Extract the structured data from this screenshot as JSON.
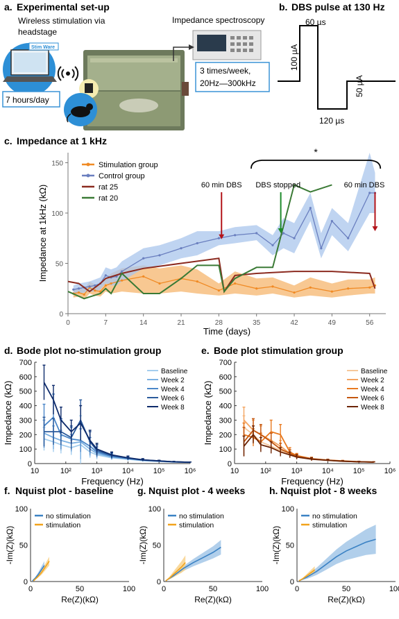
{
  "panel_a": {
    "letter": "a.",
    "title": "Experimental set-up",
    "wireless_label": "Wireless stimulation via",
    "wireless_label2": "headstage",
    "spectroscopy_label": "Impedance spectroscopy",
    "hours_box": "7 hours/day",
    "freq_box_line1": "3 times/week,",
    "freq_box_line2": "20Hz—300kHz",
    "logo_text": "Stim Ware",
    "colors": {
      "box_border": "#3a93d6",
      "laptop_screen": "#cfe3f2",
      "cage": "#8a9a72",
      "arrow": "#333333"
    }
  },
  "panel_b": {
    "letter": "b.",
    "title": "DBS pulse at 130 Hz",
    "pulse_width_top": "60 µs",
    "pulse_width_bottom": "120 µs",
    "amp_pos": "100 µA",
    "amp_neg": "50 µA",
    "chart_data": {
      "type": "line",
      "x": [
        0,
        0,
        60,
        60,
        180,
        180,
        240
      ],
      "y": [
        0,
        100,
        100,
        -50,
        -50,
        0,
        0
      ],
      "xlabel": "",
      "ylabel": ""
    }
  },
  "panel_c": {
    "letter": "c.",
    "title": "Impedance at 1 kHz",
    "annotations": {
      "dbs1": "60 min DBS",
      "stopped": "DBS stopped",
      "dbs2": "60 min DBS",
      "significance": "*"
    },
    "colors": {
      "stim": "#f08a24",
      "stim_band": "#f6b56e",
      "control": "#6a7fbf",
      "control_band": "#a9c6ec",
      "rat25": "#8b2a1f",
      "rat20": "#3a7a35",
      "arrow_red": "#b3141a",
      "arrow_green": "#1d8a2a"
    },
    "chart_data": {
      "type": "line",
      "xlabel": "Time (days)",
      "ylabel": "Impedance at 1kHz (kΩ)",
      "xlim": [
        0,
        59
      ],
      "ylim": [
        0,
        160
      ],
      "xticks": [
        0,
        7,
        14,
        21,
        28,
        35,
        42,
        49,
        56
      ],
      "yticks": [
        0,
        50,
        100,
        150
      ],
      "legend_position": "top-left",
      "series": [
        {
          "name": "Stimulation group",
          "x": [
            1,
            2,
            3,
            4,
            5,
            6,
            7,
            8,
            10,
            14,
            17,
            21,
            24,
            28,
            31,
            35,
            38,
            42,
            45,
            49,
            52,
            56,
            57
          ],
          "y": [
            20,
            21,
            19,
            26,
            23,
            22,
            28,
            30,
            33,
            37,
            30,
            35,
            32,
            23,
            30,
            25,
            27,
            21,
            26,
            22,
            25,
            26,
            28
          ],
          "lower": [
            16,
            17,
            14,
            20,
            18,
            17,
            22,
            20,
            22,
            20,
            20,
            22,
            20,
            18,
            20,
            18,
            20,
            16,
            18,
            16,
            18,
            20,
            20
          ],
          "upper": [
            24,
            26,
            24,
            32,
            29,
            28,
            35,
            40,
            45,
            48,
            45,
            48,
            44,
            30,
            42,
            35,
            36,
            28,
            36,
            30,
            34,
            34,
            36
          ]
        },
        {
          "name": "Control group",
          "x": [
            1,
            2,
            3,
            4,
            5,
            6,
            7,
            8,
            9,
            10,
            14,
            17,
            21,
            24,
            28,
            31,
            35,
            38,
            40,
            42,
            45,
            47,
            49,
            52,
            56,
            57
          ],
          "y": [
            24,
            25,
            26,
            27,
            28,
            30,
            38,
            36,
            37,
            42,
            55,
            58,
            65,
            70,
            75,
            78,
            80,
            68,
            80,
            75,
            105,
            65,
            92,
            75,
            120,
            120
          ],
          "lower": [
            20,
            20,
            21,
            22,
            22,
            24,
            30,
            28,
            28,
            32,
            45,
            48,
            55,
            58,
            68,
            70,
            73,
            58,
            65,
            60,
            92,
            55,
            78,
            62,
            100,
            100
          ],
          "upper": [
            28,
            30,
            31,
            32,
            34,
            36,
            46,
            44,
            46,
            52,
            65,
            68,
            75,
            82,
            82,
            86,
            88,
            78,
            95,
            90,
            120,
            80,
            105,
            90,
            160,
            140
          ]
        },
        {
          "name": "rat 25",
          "x": [
            0,
            2,
            4,
            6,
            7,
            10,
            14,
            21,
            28,
            29,
            31,
            35,
            42,
            49,
            56,
            57
          ],
          "y": [
            32,
            30,
            22,
            30,
            35,
            40,
            45,
            50,
            55,
            22,
            38,
            40,
            42,
            42,
            40,
            25
          ]
        },
        {
          "name": "rat 20",
          "x": [
            0,
            3,
            6,
            7,
            8,
            10,
            14,
            17,
            21,
            24,
            28,
            29,
            31,
            35,
            38,
            42,
            45,
            49
          ],
          "y": [
            22,
            15,
            20,
            25,
            20,
            40,
            20,
            20,
            35,
            48,
            48,
            22,
            35,
            46,
            46,
            128,
            121,
            128
          ]
        }
      ]
    }
  },
  "panel_d": {
    "letter": "d.",
    "title": "Bode plot no-stimulation group",
    "colors": {
      "baseline": "#a3cdee",
      "week2": "#7cb1e2",
      "week4": "#4a86c8",
      "week6": "#2a5a9c",
      "week8": "#0d2a6a"
    },
    "chart_data": {
      "type": "line",
      "xlabel": "Frequency (Hz)",
      "ylabel": "Impedance (kΩ)",
      "xscale": "log",
      "xlim": [
        10,
        1000000
      ],
      "ylim": [
        0,
        700
      ],
      "yticks": [
        0,
        100,
        200,
        300,
        400,
        500,
        600,
        700
      ],
      "xticks": [
        "10",
        "10²",
        "10³",
        "10⁴",
        "10⁵",
        "10⁶"
      ],
      "legend_position": "top-right",
      "x": [
        20,
        40,
        70,
        150,
        300,
        600,
        1000,
        3000,
        10000,
        30000,
        100000,
        300000,
        1000000
      ],
      "series": [
        {
          "name": "Baseline",
          "values": [
            170,
            150,
            130,
            110,
            130,
            80,
            60,
            40,
            30,
            20,
            15,
            10,
            8
          ],
          "err": [
            80,
            70,
            60,
            50,
            200,
            40,
            30,
            15,
            10,
            6,
            4,
            3,
            2
          ]
        },
        {
          "name": "Week 2",
          "values": [
            210,
            180,
            160,
            140,
            150,
            100,
            70,
            45,
            32,
            22,
            16,
            11,
            9
          ],
          "err": [
            90,
            80,
            70,
            60,
            120,
            50,
            30,
            15,
            10,
            6,
            4,
            3,
            2
          ]
        },
        {
          "name": "Week 4",
          "values": [
            260,
            320,
            200,
            170,
            160,
            120,
            80,
            50,
            35,
            24,
            17,
            12,
            9
          ],
          "err": [
            150,
            160,
            100,
            80,
            80,
            60,
            35,
            18,
            11,
            7,
            5,
            3,
            2
          ]
        },
        {
          "name": "Week 6",
          "values": [
            220,
            220,
            220,
            180,
            300,
            150,
            90,
            55,
            38,
            25,
            18,
            12,
            9
          ],
          "err": [
            100,
            90,
            90,
            80,
            140,
            70,
            40,
            20,
            12,
            8,
            5,
            3,
            2
          ]
        },
        {
          "name": "Week 8",
          "values": [
            560,
            440,
            300,
            220,
            280,
            160,
            100,
            60,
            40,
            26,
            18,
            12,
            9
          ],
          "err": [
            120,
            100,
            90,
            80,
            120,
            70,
            40,
            20,
            12,
            8,
            5,
            3,
            2
          ]
        }
      ]
    }
  },
  "panel_e": {
    "letter": "e.",
    "title": "Bode plot stimulation group",
    "colors": {
      "baseline": "#f6c79a",
      "week2": "#f4a460",
      "week4": "#e8791f",
      "week6": "#c4560e",
      "week8": "#6b2406"
    },
    "chart_data": {
      "type": "line",
      "xlabel": "Frequency (Hz)",
      "ylabel": "Impedance (kΩ)",
      "xscale": "log",
      "xlim": [
        10,
        1000000
      ],
      "ylim": [
        0,
        700
      ],
      "yticks": [
        0,
        100,
        200,
        300,
        400,
        500,
        600,
        700
      ],
      "xticks": [
        "10",
        "10²",
        "10³",
        "10⁴",
        "10⁵",
        "10⁶"
      ],
      "legend_position": "top-right",
      "x": [
        20,
        40,
        70,
        150,
        300,
        600,
        1000,
        3000,
        10000,
        30000,
        100000,
        300000
      ],
      "series": [
        {
          "name": "Baseline",
          "values": [
            250,
            200,
            150,
            120,
            90,
            60,
            45,
            30,
            22,
            16,
            12,
            10
          ],
          "err": [
            80,
            60,
            50,
            40,
            30,
            20,
            15,
            10,
            6,
            4,
            3,
            2
          ]
        },
        {
          "name": "Week 2",
          "values": [
            300,
            230,
            200,
            160,
            120,
            70,
            50,
            32,
            23,
            17,
            13,
            10
          ],
          "err": [
            90,
            70,
            60,
            50,
            40,
            25,
            15,
            10,
            6,
            4,
            3,
            2
          ]
        },
        {
          "name": "Week 4",
          "values": [
            200,
            180,
            150,
            220,
            200,
            80,
            55,
            34,
            24,
            18,
            13,
            10
          ],
          "err": [
            80,
            60,
            60,
            80,
            70,
            30,
            15,
            10,
            6,
            4,
            3,
            2
          ]
        },
        {
          "name": "Week 6",
          "values": [
            150,
            230,
            200,
            150,
            100,
            70,
            50,
            32,
            23,
            17,
            12,
            10
          ],
          "err": [
            100,
            80,
            70,
            60,
            40,
            25,
            15,
            10,
            6,
            4,
            3,
            2
          ]
        },
        {
          "name": "Week 8",
          "values": [
            120,
            200,
            130,
            110,
            80,
            60,
            45,
            30,
            22,
            16,
            12,
            10
          ],
          "err": [
            70,
            60,
            50,
            40,
            30,
            20,
            15,
            10,
            6,
            4,
            3,
            2
          ]
        }
      ]
    }
  },
  "panel_f": {
    "letter": "f.",
    "title": "Nquist plot - baseline",
    "colors": {
      "nostim": "#3b82c4",
      "nostim_band": "#9ec3e6",
      "stim": "#f2a31b",
      "stim_band": "#f7cf85"
    },
    "chart_data": {
      "type": "line",
      "xlabel": "Re(Z)(kΩ)",
      "ylabel": "-Im(Z)(kΩ)",
      "xlim": [
        0,
        100
      ],
      "ylim": [
        0,
        100
      ],
      "xticks": [
        0,
        50,
        100
      ],
      "yticks": [
        0,
        50,
        100
      ],
      "legend_position": "top-left",
      "series": [
        {
          "name": "no stimulation",
          "x": [
            2,
            5,
            8,
            11,
            14
          ],
          "y": [
            1,
            5,
            10,
            16,
            22
          ],
          "band": 6
        },
        {
          "name": "stimulation",
          "x": [
            3,
            7,
            11,
            15,
            19
          ],
          "y": [
            1,
            6,
            12,
            20,
            28
          ],
          "band": 6
        }
      ]
    }
  },
  "panel_g": {
    "letter": "g.",
    "title": "Nquist plot - 4 weeks",
    "chart_data": {
      "type": "line",
      "xlabel": "Re(Z)(kΩ)",
      "ylabel": "-Im(Z)(kΩ)",
      "xlim": [
        0,
        100
      ],
      "ylim": [
        0,
        100
      ],
      "xticks": [
        0,
        50,
        100
      ],
      "yticks": [
        0,
        50,
        100
      ],
      "legend_position": "top-left",
      "series": [
        {
          "name": "no stimulation",
          "x": [
            2,
            10,
            20,
            30,
            40,
            50,
            58
          ],
          "y": [
            1,
            8,
            18,
            26,
            33,
            40,
            47
          ],
          "band": 10
        },
        {
          "name": "stimulation",
          "x": [
            2,
            6,
            10,
            14,
            18,
            22
          ],
          "y": [
            1,
            5,
            10,
            15,
            20,
            26
          ],
          "band": 10
        }
      ]
    }
  },
  "panel_h": {
    "letter": "h.",
    "title": "Nquist plot - 8 weeks",
    "chart_data": {
      "type": "line",
      "xlabel": "Re(Z)(kΩ)",
      "ylabel": "-Im(Z)(kΩ)",
      "xlim": [
        0,
        100
      ],
      "ylim": [
        0,
        100
      ],
      "xticks": [
        0,
        50,
        100
      ],
      "yticks": [
        0,
        50,
        100
      ],
      "legend_position": "top-left",
      "series": [
        {
          "name": "no stimulation",
          "x": [
            2,
            10,
            20,
            30,
            40,
            50,
            60,
            70,
            80
          ],
          "y": [
            1,
            6,
            14,
            24,
            34,
            42,
            48,
            54,
            58
          ],
          "band": 20
        },
        {
          "name": "stimulation",
          "x": [
            2,
            6,
            10,
            14,
            18
          ],
          "y": [
            1,
            4,
            8,
            12,
            16
          ],
          "band": 5
        }
      ]
    }
  }
}
